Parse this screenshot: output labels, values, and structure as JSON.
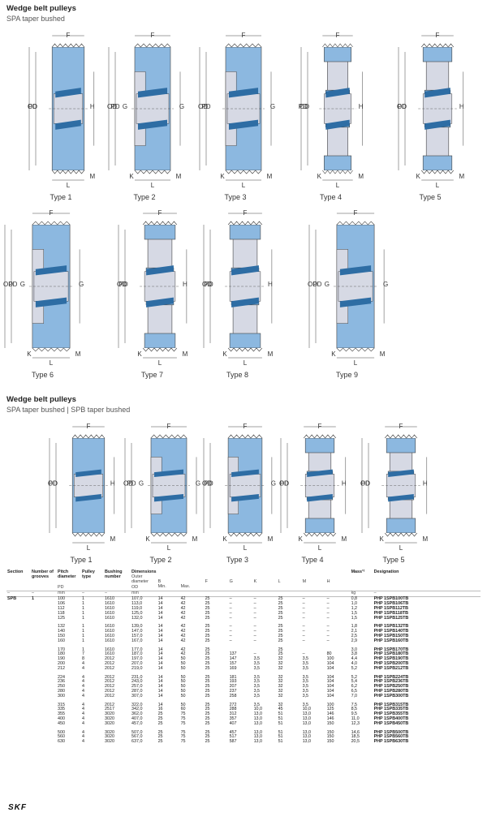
{
  "section1": {
    "title": "Wedge belt pulleys",
    "subtitle": "SPA taper bushed"
  },
  "section2": {
    "title": "Wedge belt pulleys",
    "subtitle": "SPA taper bushed   |   SPB taper bushed"
  },
  "dim_labels": {
    "od": "OD",
    "pd": "PD",
    "g": "G",
    "h": "H",
    "f": "F",
    "l": "L",
    "k": "K",
    "m": "M"
  },
  "types_top": [
    "Type 1",
    "Type 2",
    "Type 3",
    "Type 4",
    "Type 5",
    "Type 6",
    "Type 7",
    "Type 8",
    "Type 9"
  ],
  "types_bottom": [
    "Type 1",
    "Type 2",
    "Type 3",
    "Type 4",
    "Type 5"
  ],
  "table": {
    "headers": {
      "section": "Section",
      "grooves": "Number of grooves",
      "pitch": "Pitch diameter",
      "pitch_sub": "PD",
      "pulley": "Pulley type",
      "bushing": "Bushing number",
      "dims": "Dimensions",
      "dims_sub": "Outer diameter",
      "od": "OD",
      "b": "B",
      "min": "Min.",
      "max": "Max.",
      "f": "F",
      "g": "G",
      "k": "K",
      "l": "L",
      "m": "M",
      "h": "H",
      "mass": "Mass¹⁾",
      "designation": "Designation"
    },
    "units": {
      "dash": "–",
      "mm": "mm",
      "mm2": "mm",
      "kg": "kg"
    },
    "section": "SPB",
    "grooves": "1",
    "groups": [
      [
        [
          "100",
          "1",
          "1610",
          "107,0",
          "14",
          "42",
          "25",
          "–",
          "–",
          "25",
          "–",
          "–",
          "0,8",
          "PHP 1SPB100TB"
        ],
        [
          "106",
          "1",
          "1610",
          "113,0",
          "14",
          "42",
          "25",
          "–",
          "–",
          "25",
          "–",
          "–",
          "1,0",
          "PHP 1SPB106TB"
        ],
        [
          "112",
          "1",
          "1610",
          "119,0",
          "14",
          "42",
          "25",
          "–",
          "–",
          "25",
          "–",
          "–",
          "1,2",
          "PHP 1SPB112TB"
        ],
        [
          "118",
          "1",
          "1610",
          "125,0",
          "14",
          "42",
          "25",
          "–",
          "–",
          "25",
          "–",
          "–",
          "1,5",
          "PHP 1SPB118TB"
        ],
        [
          "125",
          "1",
          "1610",
          "132,0",
          "14",
          "42",
          "25",
          "–",
          "–",
          "25",
          "–",
          "–",
          "1,5",
          "PHP 1SPB125TB"
        ]
      ],
      [
        [
          "132",
          "1",
          "1610",
          "139,0",
          "14",
          "42",
          "25",
          "–",
          "–",
          "25",
          "–",
          "–",
          "1,8",
          "PHP 1SPB132TB"
        ],
        [
          "140",
          "1",
          "1610",
          "147,0",
          "14",
          "42",
          "25",
          "–",
          "–",
          "25",
          "–",
          "–",
          "2,1",
          "PHP 1SPB140TB"
        ],
        [
          "150",
          "1",
          "1610",
          "157,0",
          "14",
          "42",
          "25",
          "–",
          "–",
          "25",
          "–",
          "–",
          "2,5",
          "PHP 1SPB150TB"
        ],
        [
          "160",
          "1",
          "1610",
          "167,0",
          "14",
          "42",
          "25",
          "–",
          "–",
          "25",
          "–",
          "–",
          "2,9",
          "PHP 1SPB160TB"
        ]
      ],
      [
        [
          "170",
          "1",
          "1610",
          "177,0",
          "14",
          "42",
          "25",
          "",
          "",
          "25",
          "",
          "",
          "3,0",
          "PHP 1SPB170TB"
        ],
        [
          "180",
          "7",
          "1610",
          "187,0",
          "14",
          "42",
          "25",
          "137",
          "–",
          "25",
          "–",
          "80",
          "3,8",
          "PHP 1SPB180TB"
        ],
        [
          "190",
          "8",
          "2012",
          "197,0",
          "14",
          "50",
          "25",
          "147",
          "3,5",
          "32",
          "3,5",
          "100",
          "4,4",
          "PHP 1SPB190TB"
        ],
        [
          "200",
          "4",
          "2012",
          "207,0",
          "14",
          "50",
          "25",
          "157",
          "3,5",
          "32",
          "3,5",
          "104",
          "4,0",
          "PHP 1SPB200TB"
        ],
        [
          "212",
          "4",
          "2012",
          "219,0",
          "14",
          "50",
          "25",
          "169",
          "3,5",
          "32",
          "3,5",
          "104",
          "5,2",
          "PHP 1SPB212TB"
        ]
      ],
      [
        [
          "224",
          "4",
          "2012",
          "231,0",
          "14",
          "50",
          "25",
          "181",
          "3,5",
          "32",
          "3,5",
          "104",
          "5,2",
          "PHP 1SPB224TB"
        ],
        [
          "236",
          "4",
          "2012",
          "243,0",
          "14",
          "50",
          "25",
          "193",
          "3,5",
          "32",
          "3,5",
          "104",
          "5,4",
          "PHP 1SPB236TB"
        ],
        [
          "250",
          "4",
          "2012",
          "257,0",
          "14",
          "50",
          "25",
          "207",
          "3,5",
          "32",
          "3,5",
          "104",
          "6,2",
          "PHP 1SPB250TB"
        ],
        [
          "280",
          "4",
          "2012",
          "287,0",
          "14",
          "50",
          "25",
          "237",
          "3,5",
          "32",
          "3,5",
          "104",
          "6,5",
          "PHP 1SPB280TB"
        ],
        [
          "300",
          "4",
          "2012",
          "307,0",
          "14",
          "50",
          "25",
          "258",
          "3,5",
          "32",
          "3,5",
          "104",
          "7,0",
          "PHP 1SPB300TB"
        ]
      ],
      [
        [
          "315",
          "4",
          "2012",
          "322,0",
          "14",
          "50",
          "25",
          "272",
          "3,5",
          "32",
          "3,5",
          "100",
          "7,5",
          "PHP 1SPB315TB"
        ],
        [
          "335",
          "4",
          "2517",
          "342,0",
          "16",
          "60",
          "25",
          "288",
          "10,0",
          "45",
          "10,0",
          "125",
          "8,5",
          "PHP 1SPB335TB"
        ],
        [
          "355",
          "4",
          "3020",
          "362,0",
          "25",
          "75",
          "25",
          "312",
          "13,0",
          "51",
          "13,0",
          "146",
          "9,5",
          "PHP 1SPB355TB"
        ],
        [
          "400",
          "4",
          "3020",
          "407,0",
          "25",
          "75",
          "25",
          "357",
          "13,0",
          "51",
          "13,0",
          "146",
          "11,0",
          "PHP 1SPB400TB"
        ],
        [
          "450",
          "4",
          "3020",
          "457,0",
          "25",
          "75",
          "25",
          "407",
          "13,0",
          "51",
          "13,0",
          "150",
          "12,3",
          "PHP 1SPB450TB"
        ]
      ],
      [
        [
          "500",
          "4",
          "3020",
          "507,0",
          "25",
          "75",
          "25",
          "457",
          "13,0",
          "51",
          "13,0",
          "150",
          "14,6",
          "PHP 1SPB500TB"
        ],
        [
          "560",
          "4",
          "3020",
          "567,0",
          "25",
          "75",
          "25",
          "517",
          "13,0",
          "51",
          "13,0",
          "150",
          "18,5",
          "PHP 1SPB560TB"
        ],
        [
          "630",
          "4",
          "3020",
          "637,0",
          "25",
          "75",
          "25",
          "587",
          "13,0",
          "51",
          "13,0",
          "150",
          "20,5",
          "PHP 1SPB630TB"
        ]
      ]
    ]
  },
  "colors": {
    "blue": "#8cb8e0",
    "blue_dark": "#2e6da4",
    "grey": "#d6d9e4",
    "line": "#444444"
  },
  "logo": "SKF"
}
